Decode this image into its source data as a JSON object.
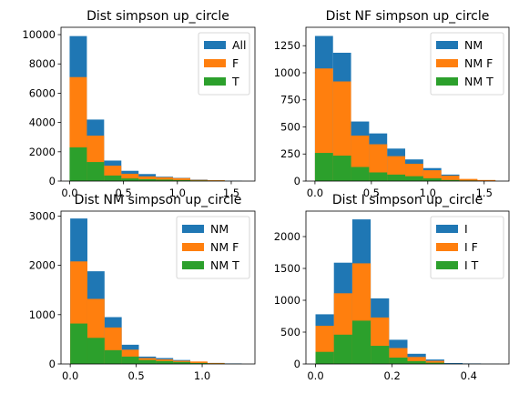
{
  "chart_data": [
    {
      "type": "histogram",
      "title": "Dist simpson up_circle",
      "xlim": [
        -0.08,
        1.72
      ],
      "ylim": [
        0,
        10500
      ],
      "xticks": [
        0.0,
        0.5,
        1.0,
        1.5
      ],
      "yticks": [
        0,
        2000,
        4000,
        6000,
        8000,
        10000
      ],
      "xtick_labels": [
        "0.0",
        "0.5",
        "1.0",
        "1.5"
      ],
      "ytick_labels": [
        "0",
        "2000",
        "4000",
        "6000",
        "8000",
        "10000"
      ],
      "legend": {
        "position": "top-right"
      },
      "series": [
        {
          "name": "All",
          "color": "#1f77b4",
          "edges": [
            0.0,
            0.16,
            0.32,
            0.48,
            0.64,
            0.8,
            0.96,
            1.12,
            1.28,
            1.44,
            1.6
          ],
          "values": [
            9900,
            4200,
            1400,
            700,
            480,
            300,
            220,
            100,
            40,
            20
          ]
        },
        {
          "name": "F",
          "color": "#ff7f0e",
          "edges": [
            0.0,
            0.16,
            0.32,
            0.48,
            0.64,
            0.8,
            0.96,
            1.12,
            1.28,
            1.44
          ],
          "values": [
            7100,
            3100,
            1050,
            500,
            320,
            260,
            200,
            80,
            60
          ]
        },
        {
          "name": "T",
          "color": "#2ca02c",
          "edges": [
            0.0,
            0.16,
            0.32,
            0.48,
            0.64,
            0.8,
            0.96,
            1.12,
            1.28,
            1.44
          ],
          "values": [
            2300,
            1300,
            380,
            180,
            130,
            100,
            70,
            40,
            30
          ]
        }
      ]
    },
    {
      "type": "histogram",
      "title": "Dist NF simpson up_circle",
      "xlim": [
        -0.08,
        1.72
      ],
      "ylim": [
        0,
        1420
      ],
      "xticks": [
        0.0,
        0.5,
        1.0,
        1.5
      ],
      "yticks": [
        0,
        250,
        500,
        750,
        1000,
        1250
      ],
      "xtick_labels": [
        "0.0",
        "0.5",
        "1.0",
        "1.5"
      ],
      "ytick_labels": [
        "0",
        "250",
        "500",
        "750",
        "1000",
        "1250"
      ],
      "legend": {
        "position": "top-right"
      },
      "series": [
        {
          "name": "NM",
          "color": "#1f77b4",
          "edges": [
            0.0,
            0.16,
            0.32,
            0.48,
            0.64,
            0.8,
            0.96,
            1.12,
            1.28,
            1.44,
            1.6
          ],
          "values": [
            1340,
            1185,
            550,
            440,
            300,
            200,
            120,
            60,
            15,
            8
          ]
        },
        {
          "name": "NM F",
          "color": "#ff7f0e",
          "edges": [
            0.0,
            0.16,
            0.32,
            0.48,
            0.64,
            0.8,
            0.96,
            1.12,
            1.28,
            1.44,
            1.6
          ],
          "values": [
            1040,
            920,
            420,
            340,
            230,
            160,
            100,
            50,
            20,
            10
          ]
        },
        {
          "name": "NM T",
          "color": "#2ca02c",
          "edges": [
            0.0,
            0.16,
            0.32,
            0.48,
            0.64,
            0.8,
            0.96,
            1.12,
            1.28,
            1.44
          ],
          "values": [
            260,
            235,
            130,
            80,
            60,
            45,
            25,
            10,
            5
          ]
        }
      ]
    },
    {
      "type": "histogram",
      "title": "Dist NM simpson up_circle",
      "xlim": [
        -0.07,
        1.4
      ],
      "ylim": [
        0,
        3100
      ],
      "xticks": [
        0.0,
        0.5,
        1.0
      ],
      "yticks": [
        0,
        1000,
        2000,
        3000
      ],
      "xtick_labels": [
        "0.0",
        "0.5",
        "1.0"
      ],
      "ytick_labels": [
        "0",
        "1000",
        "2000",
        "3000"
      ],
      "legend": {
        "position": "top-right"
      },
      "series": [
        {
          "name": "NM",
          "color": "#1f77b4",
          "edges": [
            0.0,
            0.13,
            0.26,
            0.39,
            0.52,
            0.65,
            0.78,
            0.91,
            1.04,
            1.17,
            1.3
          ],
          "values": [
            2950,
            1880,
            950,
            390,
            150,
            120,
            80,
            40,
            20,
            10
          ]
        },
        {
          "name": "NM F",
          "color": "#ff7f0e",
          "edges": [
            0.0,
            0.13,
            0.26,
            0.39,
            0.52,
            0.65,
            0.78,
            0.91,
            1.04,
            1.17
          ],
          "values": [
            2080,
            1320,
            740,
            290,
            120,
            95,
            65,
            50,
            20
          ]
        },
        {
          "name": "NM T",
          "color": "#2ca02c",
          "edges": [
            0.0,
            0.13,
            0.26,
            0.39,
            0.52,
            0.65,
            0.78,
            0.91,
            1.04,
            1.17
          ],
          "values": [
            820,
            530,
            280,
            150,
            80,
            60,
            40,
            20,
            10
          ]
        }
      ]
    },
    {
      "type": "histogram",
      "title": "Dist I simpson up_circle",
      "xlim": [
        -0.025,
        0.505
      ],
      "ylim": [
        0,
        2400
      ],
      "xticks": [
        0.0,
        0.2,
        0.4
      ],
      "yticks": [
        0,
        500,
        1000,
        1500,
        2000
      ],
      "xtick_labels": [
        "0.0",
        "0.2",
        "0.4"
      ],
      "ytick_labels": [
        "0",
        "500",
        "1000",
        "1500",
        "2000"
      ],
      "legend": {
        "position": "top-right"
      },
      "series": [
        {
          "name": "I",
          "color": "#1f77b4",
          "edges": [
            0.0,
            0.048,
            0.096,
            0.144,
            0.192,
            0.24,
            0.288,
            0.336,
            0.384,
            0.432,
            0.48
          ],
          "values": [
            780,
            1590,
            2270,
            1030,
            380,
            160,
            70,
            15,
            8,
            3
          ]
        },
        {
          "name": "I F",
          "color": "#ff7f0e",
          "edges": [
            0.0,
            0.048,
            0.096,
            0.144,
            0.192,
            0.24,
            0.288,
            0.336
          ],
          "values": [
            600,
            1110,
            1580,
            730,
            250,
            110,
            50
          ]
        },
        {
          "name": "I T",
          "color": "#2ca02c",
          "edges": [
            0.0,
            0.048,
            0.096,
            0.144,
            0.192,
            0.24,
            0.288,
            0.336
          ],
          "values": [
            190,
            460,
            680,
            285,
            100,
            45,
            20
          ]
        }
      ]
    }
  ]
}
